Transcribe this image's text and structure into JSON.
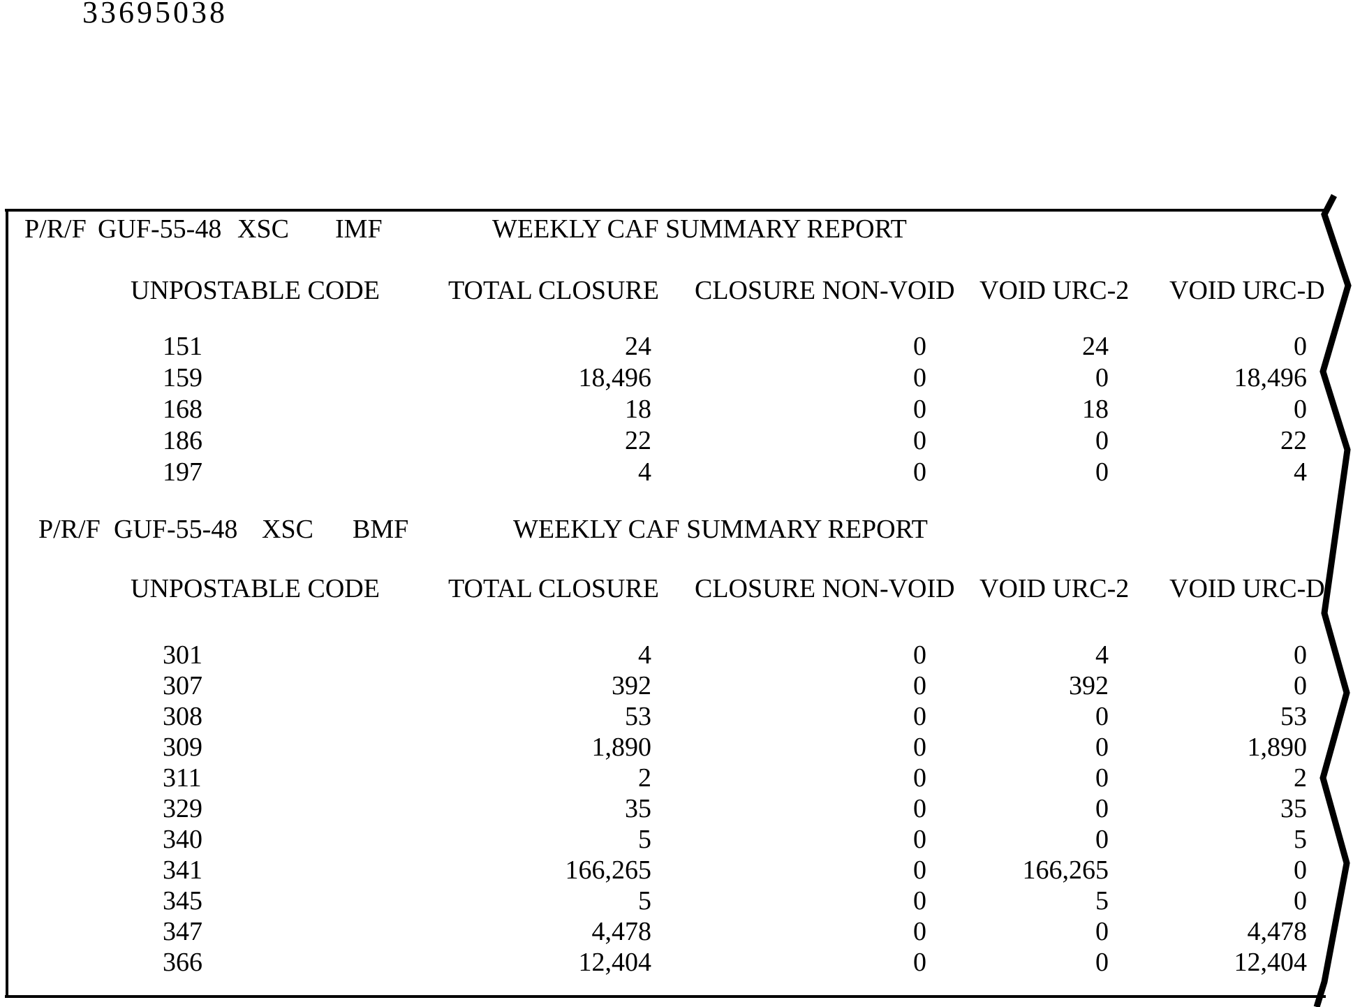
{
  "doc_number": "33695038",
  "columns": [
    "UNPOSTABLE CODE",
    "TOTAL CLOSURE",
    "CLOSURE NON-VOID",
    "VOID URC-2",
    "VOID URC-D"
  ],
  "sections": [
    {
      "header": {
        "prf": "P/R/F",
        "report_id": "GUF-55-48",
        "symbol": "XSC",
        "file": "IMF",
        "title": "WEEKLY CAF SUMMARY REPORT"
      },
      "rows": [
        {
          "code": "151",
          "total_closure": "24",
          "closure_non_void": "0",
          "void_urc_2": "24",
          "void_urc_d": "0"
        },
        {
          "code": "159",
          "total_closure": "18,496",
          "closure_non_void": "0",
          "void_urc_2": "0",
          "void_urc_d": "18,496"
        },
        {
          "code": "168",
          "total_closure": "18",
          "closure_non_void": "0",
          "void_urc_2": "18",
          "void_urc_d": "0"
        },
        {
          "code": "186",
          "total_closure": "22",
          "closure_non_void": "0",
          "void_urc_2": "0",
          "void_urc_d": "22"
        },
        {
          "code": "197",
          "total_closure": "4",
          "closure_non_void": "0",
          "void_urc_2": "0",
          "void_urc_d": "4"
        }
      ]
    },
    {
      "header": {
        "prf": "P/R/F",
        "report_id": "GUF-55-48",
        "symbol": "XSC",
        "file": "BMF",
        "title": "WEEKLY CAF SUMMARY REPORT"
      },
      "rows": [
        {
          "code": "301",
          "total_closure": "4",
          "closure_non_void": "0",
          "void_urc_2": "4",
          "void_urc_d": "0"
        },
        {
          "code": "307",
          "total_closure": "392",
          "closure_non_void": "0",
          "void_urc_2": "392",
          "void_urc_d": "0"
        },
        {
          "code": "308",
          "total_closure": "53",
          "closure_non_void": "0",
          "void_urc_2": "0",
          "void_urc_d": "53"
        },
        {
          "code": "309",
          "total_closure": "1,890",
          "closure_non_void": "0",
          "void_urc_2": "0",
          "void_urc_d": "1,890"
        },
        {
          "code": "311",
          "total_closure": "2",
          "closure_non_void": "0",
          "void_urc_2": "0",
          "void_urc_d": "2"
        },
        {
          "code": "329",
          "total_closure": "35",
          "closure_non_void": "0",
          "void_urc_2": "0",
          "void_urc_d": "35"
        },
        {
          "code": "340",
          "total_closure": "5",
          "closure_non_void": "0",
          "void_urc_2": "0",
          "void_urc_d": "5"
        },
        {
          "code": "341",
          "total_closure": "166,265",
          "closure_non_void": "0",
          "void_urc_2": "166,265",
          "void_urc_d": "0"
        },
        {
          "code": "345",
          "total_closure": "5",
          "closure_non_void": "0",
          "void_urc_2": "5",
          "void_urc_d": "0"
        },
        {
          "code": "347",
          "total_closure": "4,478",
          "closure_non_void": "0",
          "void_urc_2": "0",
          "void_urc_d": "4,478"
        },
        {
          "code": "366",
          "total_closure": "12,404",
          "closure_non_void": "0",
          "void_urc_2": "0",
          "void_urc_d": "12,404"
        }
      ]
    }
  ]
}
